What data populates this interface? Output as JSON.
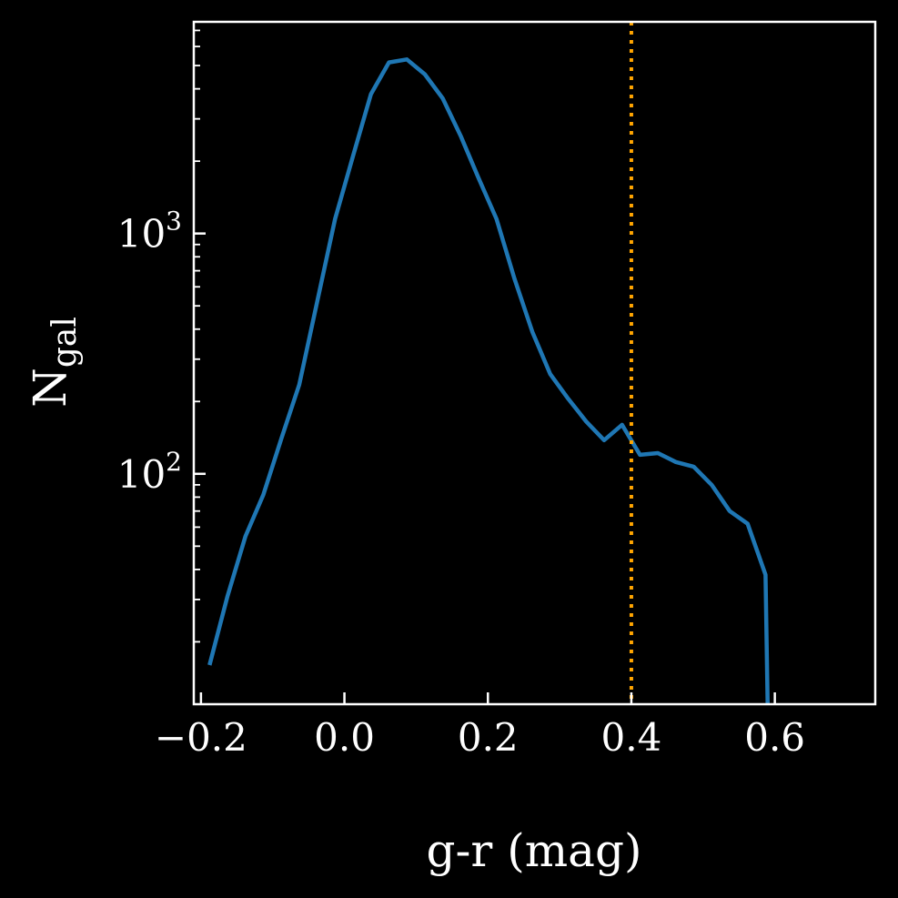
{
  "chart_data": {
    "type": "line",
    "title": "",
    "xlabel": "g-r (mag)",
    "ylabel": {
      "base": "N",
      "subscript": "gal"
    },
    "x_scale": "linear",
    "y_scale": "log",
    "xlim": [
      -0.21,
      0.74
    ],
    "ylim": [
      11,
      7600
    ],
    "x_ticks": [
      {
        "value": -0.2,
        "label": "−0.2"
      },
      {
        "value": 0.0,
        "label": "0.0"
      },
      {
        "value": 0.2,
        "label": "0.2"
      },
      {
        "value": 0.4,
        "label": "0.4"
      },
      {
        "value": 0.6,
        "label": "0.6"
      }
    ],
    "y_ticks": [
      {
        "value": 100,
        "base": "10",
        "exponent": "2"
      },
      {
        "value": 1000,
        "base": "10",
        "exponent": "3"
      }
    ],
    "grid": false,
    "colors": {
      "background": "#000000",
      "foreground": "#ffffff",
      "line": "#1f77b4",
      "threshold": "#ffa500"
    },
    "series": [
      {
        "x": [
          -0.188,
          -0.163,
          -0.138,
          -0.113,
          -0.088,
          -0.063,
          -0.038,
          -0.013,
          0.012,
          0.037,
          0.062,
          0.087,
          0.112,
          0.137,
          0.162,
          0.187,
          0.212,
          0.237,
          0.262,
          0.287,
          0.312,
          0.337,
          0.362,
          0.387,
          0.412,
          0.437,
          0.462,
          0.487,
          0.512,
          0.537,
          0.562,
          0.587,
          0.59
        ],
        "y": [
          16,
          31,
          55,
          82,
          140,
          235,
          520,
          1150,
          2100,
          3800,
          5150,
          5300,
          4600,
          3650,
          2550,
          1700,
          1150,
          650,
          390,
          260,
          205,
          165,
          138,
          160,
          120,
          122,
          112,
          107,
          90,
          70,
          62,
          38,
          11
        ]
      }
    ],
    "reference_lines": [
      {
        "orientation": "vertical",
        "x": 0.4,
        "style": "dotted"
      }
    ]
  }
}
